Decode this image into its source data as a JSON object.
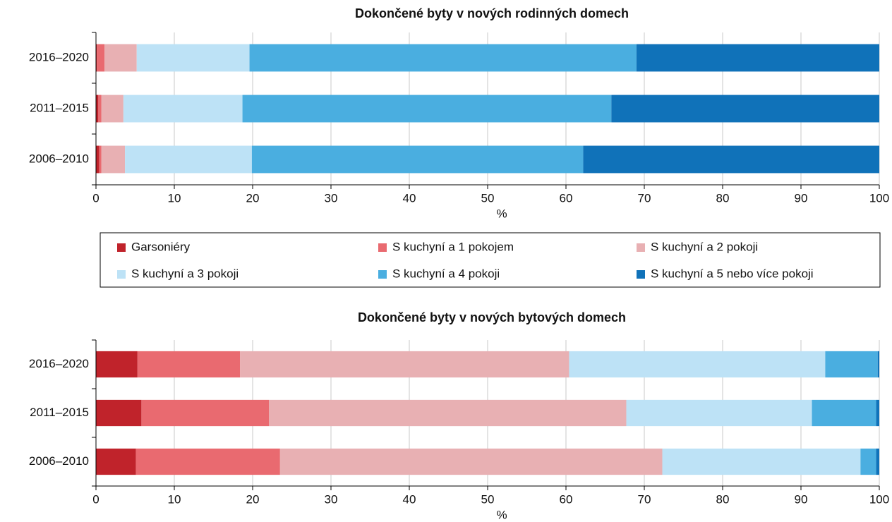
{
  "chart_data": [
    {
      "type": "bar",
      "orientation": "horizontal",
      "stacked": true,
      "title": "Dokončené byty v nových rodinných domech",
      "categories": [
        "2016–2020",
        "2011–2015",
        "2006–2010"
      ],
      "series": [
        {
          "name": "Garsoniéry",
          "color": "#c0232b",
          "values": [
            0.1,
            0.3,
            0.4
          ]
        },
        {
          "name": "S kuchyní a 1 pokojem",
          "color": "#e96a70",
          "values": [
            1.0,
            0.4,
            0.3
          ]
        },
        {
          "name": "S kuchyní a 2 pokoji",
          "color": "#e8b0b3",
          "values": [
            4.1,
            2.8,
            3.0
          ]
        },
        {
          "name": "S kuchyní a 3 pokoji",
          "color": "#bde2f6",
          "values": [
            14.4,
            15.2,
            16.2
          ]
        },
        {
          "name": "S kuchyní a 4 pokoji",
          "color": "#4aaee0",
          "values": [
            49.4,
            47.1,
            42.3
          ]
        },
        {
          "name": "S kuchyní a 5 nebo více pokoji",
          "color": "#1072b9",
          "values": [
            31.0,
            34.2,
            37.8
          ]
        }
      ],
      "xlabel": "%",
      "xlim": [
        0,
        100
      ],
      "xticks": [
        0,
        10,
        20,
        30,
        40,
        50,
        60,
        70,
        80,
        90,
        100
      ],
      "grid": true,
      "legend": "bottom"
    },
    {
      "type": "bar",
      "orientation": "horizontal",
      "stacked": true,
      "title": "Dokončené byty v nových bytových domech",
      "categories": [
        "2016–2020",
        "2011–2015",
        "2006–2010"
      ],
      "series": [
        {
          "color": "#c0232b",
          "values": [
            5.3,
            5.8,
            5.1
          ]
        },
        {
          "color": "#e96a70",
          "values": [
            13.1,
            16.3,
            18.4
          ]
        },
        {
          "color": "#e8b0b3",
          "values": [
            42.0,
            45.6,
            48.8
          ]
        },
        {
          "color": "#bde2f6",
          "values": [
            32.7,
            23.7,
            25.3
          ]
        },
        {
          "color": "#4aaee0",
          "values": [
            6.7,
            8.2,
            2.0
          ]
        },
        {
          "color": "#1072b9",
          "values": [
            0.2,
            0.4,
            0.4
          ]
        }
      ],
      "xlabel": "%",
      "xlim": [
        0,
        100
      ],
      "xticks": [
        0,
        10,
        20,
        30,
        40,
        50,
        60,
        70,
        80,
        90,
        100
      ],
      "grid": true
    }
  ]
}
